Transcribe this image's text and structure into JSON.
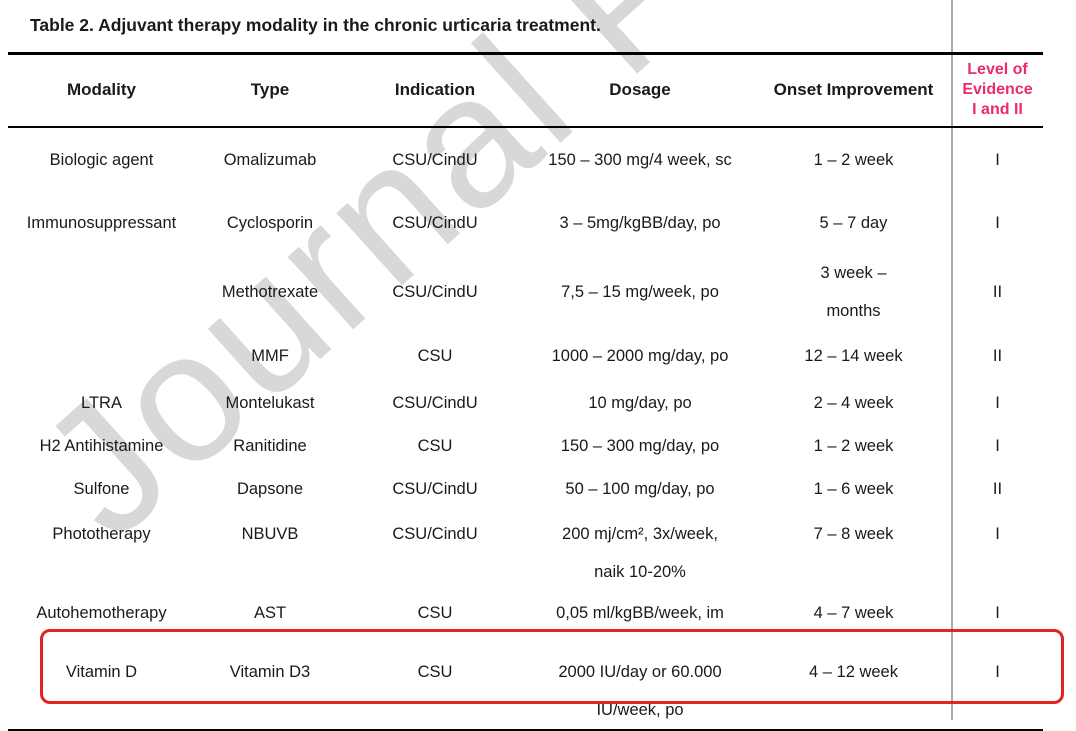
{
  "title": "Table 2. Adjuvant therapy modality in the chronic urticaria treatment.",
  "watermark": {
    "text": "Journal Pre-proof",
    "color": "#d8d8d8"
  },
  "accent_colors": {
    "evidence_header_pink": "#ee2a68",
    "highlight_red": "#e0251f",
    "divider_gray": "#a8a8a8"
  },
  "columns": {
    "modality": "Modality",
    "type": "Type",
    "indication": "Indication",
    "dosage": "Dosage",
    "onset": "Onset Improvement",
    "level": "Level of\nEvidence\nI and II"
  },
  "rows": [
    {
      "modality": "Biologic agent",
      "type": "Omalizumab",
      "indication": "CSU/CindU",
      "dosage": "150 – 300 mg/4 week, sc",
      "onset": "1 – 2 week",
      "level": "I",
      "highlighted": false
    },
    {
      "modality": "Immunosuppressant",
      "type": "Cyclosporin",
      "indication": "CSU/CindU",
      "dosage": "3 – 5mg/kgBB/day, po",
      "onset": "5 – 7 day",
      "level": "I",
      "highlighted": false
    },
    {
      "modality": "",
      "type": "Methotrexate",
      "indication": "CSU/CindU",
      "dosage": "7,5 – 15 mg/week, po",
      "onset": "3 week –\nmonths",
      "level": "II",
      "highlighted": false
    },
    {
      "modality": "",
      "type": "MMF",
      "indication": "CSU",
      "dosage": "1000 – 2000 mg/day, po",
      "onset": "12 – 14 week",
      "level": "II",
      "highlighted": false
    },
    {
      "modality": "LTRA",
      "type": "Montelukast",
      "indication": "CSU/CindU",
      "dosage": "10 mg/day, po",
      "onset": "2 – 4 week",
      "level": "I",
      "highlighted": false
    },
    {
      "modality": "H2 Antihistamine",
      "type": "Ranitidine",
      "indication": "CSU",
      "dosage": "150 – 300 mg/day, po",
      "onset": "1 – 2 week",
      "level": "I",
      "highlighted": false
    },
    {
      "modality": "Sulfone",
      "type": "Dapsone",
      "indication": "CSU/CindU",
      "dosage": "50 – 100 mg/day, po",
      "onset": "1 – 6 week",
      "level": "II",
      "highlighted": false
    },
    {
      "modality": "Phototherapy",
      "type": "NBUVB",
      "indication": "CSU/CindU",
      "dosage": "200 mj/cm², 3x/week,\nnaik 10-20%",
      "onset": "7 – 8 week",
      "level": "I",
      "highlighted": false
    },
    {
      "modality": "Autohemotherapy",
      "type": "AST",
      "indication": "CSU",
      "dosage": "0,05 ml/kgBB/week, im",
      "onset": "4 – 7 week",
      "level": "I",
      "highlighted": false
    },
    {
      "modality": "Vitamin D",
      "type": "Vitamin D3",
      "indication": "CSU",
      "dosage": "2000 IU/day or 60.000\nIU/week, po",
      "onset": "4 – 12 week",
      "level": "I",
      "highlighted": true
    }
  ]
}
